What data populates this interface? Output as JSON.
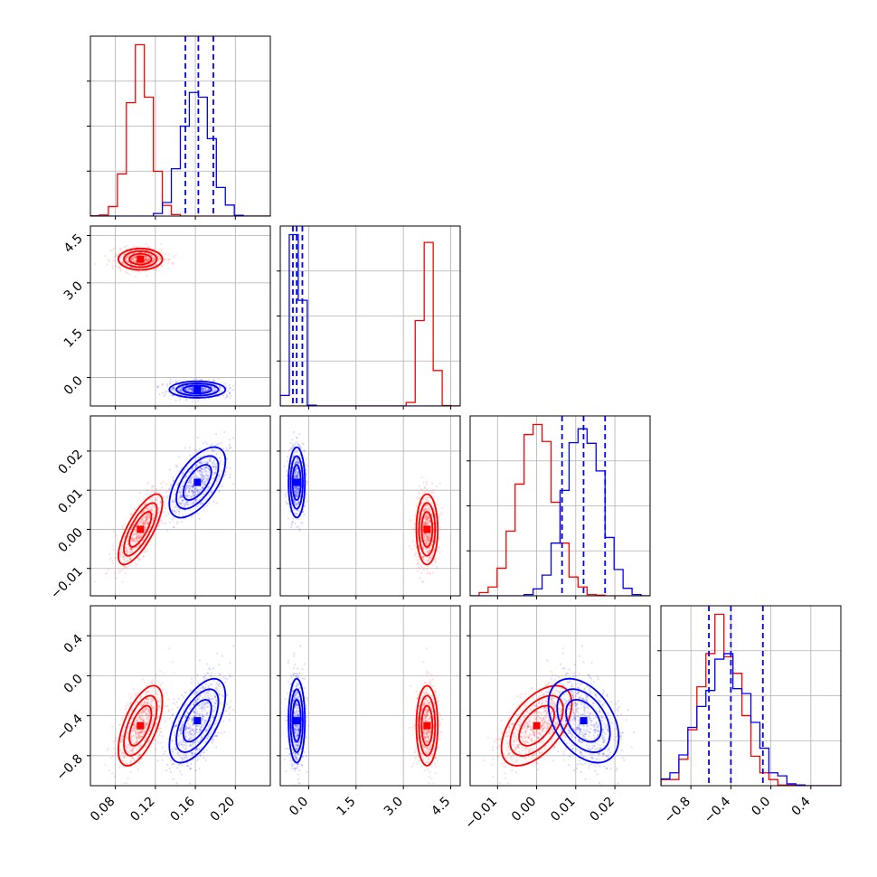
{
  "colors": {
    "red": "#ff0000",
    "blue": "#0000ff",
    "grid": "#b0b0b0"
  },
  "chart_data": {
    "type": "scatter",
    "kind": "corner",
    "variables": 4,
    "grid": true,
    "axes": [
      {
        "range": [
          0.055,
          0.235
        ],
        "ticks": [
          0.08,
          0.12,
          0.16,
          0.2
        ],
        "ticklabels": [
          "0.08",
          "0.12",
          "0.16",
          "0.20"
        ]
      },
      {
        "range": [
          -0.9,
          4.8
        ],
        "ticks": [
          0.0,
          1.5,
          3.0,
          4.5
        ],
        "ticklabels": [
          "0.0",
          "1.5",
          "3.0",
          "4.5"
        ]
      },
      {
        "range": [
          -0.017,
          0.029
        ],
        "ticks": [
          -0.01,
          0.0,
          0.01,
          0.02
        ],
        "ticklabels": [
          "−0.01",
          "0.00",
          "0.01",
          "0.02"
        ]
      },
      {
        "range": [
          -1.1,
          0.7
        ],
        "ticks": [
          -0.8,
          -0.4,
          0.0,
          0.4
        ],
        "ticklabels": [
          "−0.8",
          "−0.4",
          "0.0",
          "0.4"
        ]
      }
    ],
    "series": [
      {
        "color": "#ff0000",
        "means": [
          0.105,
          3.75,
          0.0,
          -0.5
        ],
        "stds": [
          0.011,
          0.17,
          0.0045,
          0.2
        ],
        "corr": {
          "0-1": 0.0,
          "0-2": 0.75,
          "0-3": 0.6,
          "1-2": 0.0,
          "1-3": 0.0,
          "2-3": 0.55
        },
        "quantiles": null
      },
      {
        "color": "#0000ff",
        "means": [
          0.162,
          -0.38,
          0.012,
          -0.45
        ],
        "stds": [
          0.014,
          0.13,
          0.0045,
          0.21
        ],
        "corr": {
          "0-1": 0.0,
          "0-2": 0.6,
          "0-3": 0.6,
          "1-2": 0.0,
          "1-3": 0.0,
          "2-3": -0.4
        },
        "quantiles": [
          [
            0.15,
            0.163,
            0.178
          ],
          [
            -0.5,
            -0.38,
            -0.2
          ],
          [
            0.0065,
            0.012,
            0.0175
          ],
          [
            -0.62,
            -0.4,
            -0.08
          ]
        ]
      }
    ]
  }
}
